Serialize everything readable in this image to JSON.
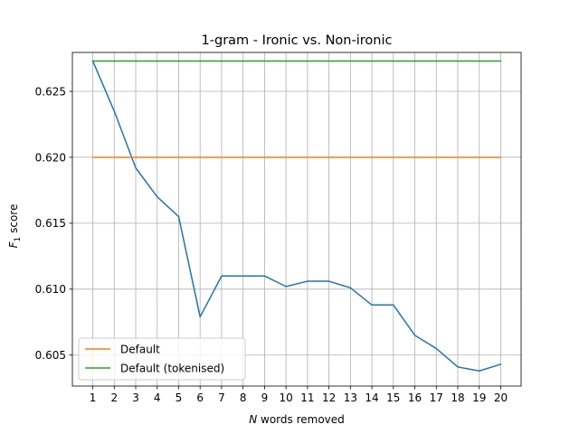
{
  "chart_data": {
    "type": "line",
    "title": "1-gram - Ironic vs. Non-ironic",
    "xlabel_var": "N",
    "xlabel_rest": " words removed",
    "ylabel_main": "F",
    "ylabel_sub": "1",
    "ylabel_rest": " score",
    "xlim": [
      0.05,
      20.95
    ],
    "ylim": [
      0.60265,
      0.62795
    ],
    "x": [
      1,
      2,
      3,
      4,
      5,
      6,
      7,
      8,
      9,
      10,
      11,
      12,
      13,
      14,
      15,
      16,
      17,
      18,
      19,
      20
    ],
    "x_ticks": [
      "1",
      "2",
      "3",
      "4",
      "5",
      "6",
      "7",
      "8",
      "9",
      "10",
      "11",
      "12",
      "13",
      "14",
      "15",
      "16",
      "17",
      "18",
      "19",
      "20"
    ],
    "y_ticks": [
      0.605,
      0.61,
      0.615,
      0.62,
      0.625
    ],
    "y_tick_labels": [
      "0.605",
      "0.610",
      "0.615",
      "0.620",
      "0.625"
    ],
    "grid": true,
    "legend_position": "lower-left",
    "series": [
      {
        "name": "",
        "color": "#1f77b4",
        "values": [
          0.6273,
          0.6235,
          0.6192,
          0.617,
          0.6155,
          0.6079,
          0.611,
          0.611,
          0.611,
          0.6102,
          0.6106,
          0.6106,
          0.6101,
          0.6088,
          0.6088,
          0.6065,
          0.6055,
          0.6041,
          0.6038,
          0.6043
        ]
      },
      {
        "name": "Default",
        "color": "#ff7f0e",
        "values": [
          0.62,
          0.62,
          0.62,
          0.62,
          0.62,
          0.62,
          0.62,
          0.62,
          0.62,
          0.62,
          0.62,
          0.62,
          0.62,
          0.62,
          0.62,
          0.62,
          0.62,
          0.62,
          0.62,
          0.62
        ]
      },
      {
        "name": "Default (tokenised)",
        "color": "#2ca02c",
        "values": [
          0.6273,
          0.6273,
          0.6273,
          0.6273,
          0.6273,
          0.6273,
          0.6273,
          0.6273,
          0.6273,
          0.6273,
          0.6273,
          0.6273,
          0.6273,
          0.6273,
          0.6273,
          0.6273,
          0.6273,
          0.6273,
          0.6273,
          0.6273
        ]
      }
    ]
  }
}
